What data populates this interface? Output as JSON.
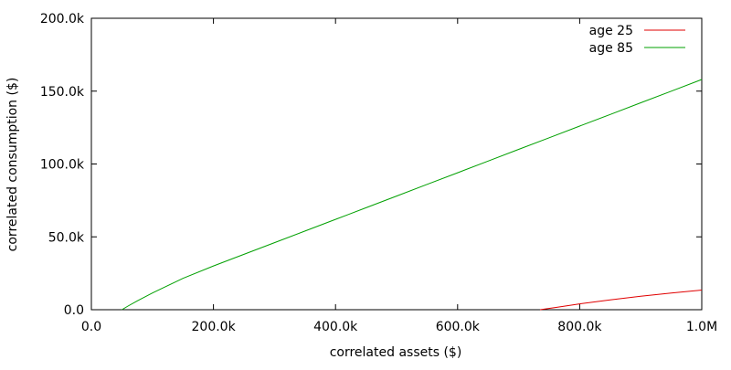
{
  "chart_data": {
    "type": "line",
    "xlabel": "correlated assets ($)",
    "ylabel": "correlated consumption ($)",
    "xlim": [
      0,
      1000000
    ],
    "ylim": [
      0,
      200000
    ],
    "x_ticks": [
      {
        "value": 0,
        "label": "0.0"
      },
      {
        "value": 200000,
        "label": "200.0k"
      },
      {
        "value": 400000,
        "label": "400.0k"
      },
      {
        "value": 600000,
        "label": "600.0k"
      },
      {
        "value": 800000,
        "label": "800.0k"
      },
      {
        "value": 1000000,
        "label": "1.0M"
      }
    ],
    "y_ticks": [
      {
        "value": 0,
        "label": "0.0"
      },
      {
        "value": 50000,
        "label": "50.0k"
      },
      {
        "value": 100000,
        "label": "100.0k"
      },
      {
        "value": 150000,
        "label": "150.0k"
      },
      {
        "value": 200000,
        "label": "200.0k"
      }
    ],
    "grid": false,
    "legend_position": "top-right",
    "series": [
      {
        "name": "age 25",
        "color": "#e00000",
        "points": [
          [
            735000,
            0
          ],
          [
            760000,
            1500
          ],
          [
            800000,
            4000
          ],
          [
            850000,
            6800
          ],
          [
            900000,
            9300
          ],
          [
            950000,
            11400
          ],
          [
            1000000,
            13500
          ]
        ]
      },
      {
        "name": "age 85",
        "color": "#00a000",
        "points": [
          [
            50000,
            0
          ],
          [
            60000,
            2500
          ],
          [
            75000,
            6000
          ],
          [
            100000,
            11500
          ],
          [
            125000,
            16500
          ],
          [
            150000,
            21500
          ],
          [
            200000,
            30000
          ],
          [
            250000,
            38000
          ],
          [
            300000,
            46000
          ],
          [
            350000,
            54000
          ],
          [
            400000,
            62000
          ],
          [
            450000,
            70000
          ],
          [
            500000,
            78000
          ],
          [
            550000,
            86000
          ],
          [
            600000,
            94000
          ],
          [
            650000,
            102000
          ],
          [
            700000,
            110000
          ],
          [
            750000,
            118000
          ],
          [
            800000,
            126000
          ],
          [
            850000,
            134000
          ],
          [
            900000,
            142000
          ],
          [
            950000,
            150000
          ],
          [
            1000000,
            158000
          ]
        ]
      }
    ]
  }
}
